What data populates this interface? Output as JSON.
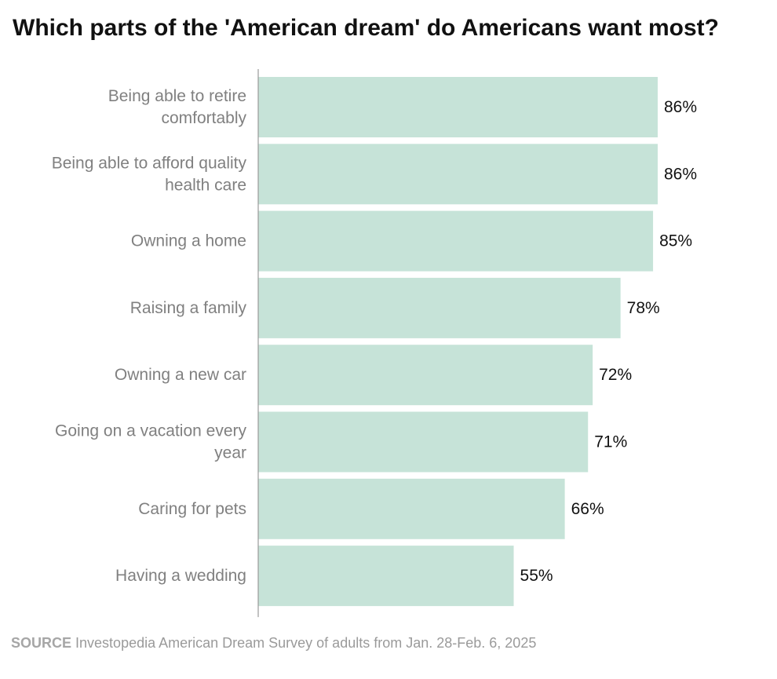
{
  "chart_data": {
    "type": "bar",
    "orientation": "horizontal",
    "title": "Which parts of the 'American dream' do Americans want most?",
    "categories": [
      [
        "Being able to retire",
        "comfortably"
      ],
      [
        "Being able to afford quality",
        "health care"
      ],
      [
        "Owning a home"
      ],
      [
        "Raising a family"
      ],
      [
        "Owning a new car"
      ],
      [
        "Going on a vacation every",
        "year"
      ],
      [
        "Caring for pets"
      ],
      [
        "Having a wedding"
      ]
    ],
    "values": [
      86,
      86,
      85,
      78,
      72,
      71,
      66,
      55
    ],
    "value_labels": [
      "86%",
      "86%",
      "85%",
      "78%",
      "72%",
      "71%",
      "66%",
      "55%"
    ],
    "xlim": [
      0,
      86
    ],
    "bar_color": "#c6e3d8",
    "axis_color": "#999999",
    "grid": false,
    "legend": "none"
  },
  "source": {
    "label": "SOURCE",
    "text": "Investopedia American Dream Survey of adults from Jan. 28-Feb. 6, 2025"
  }
}
